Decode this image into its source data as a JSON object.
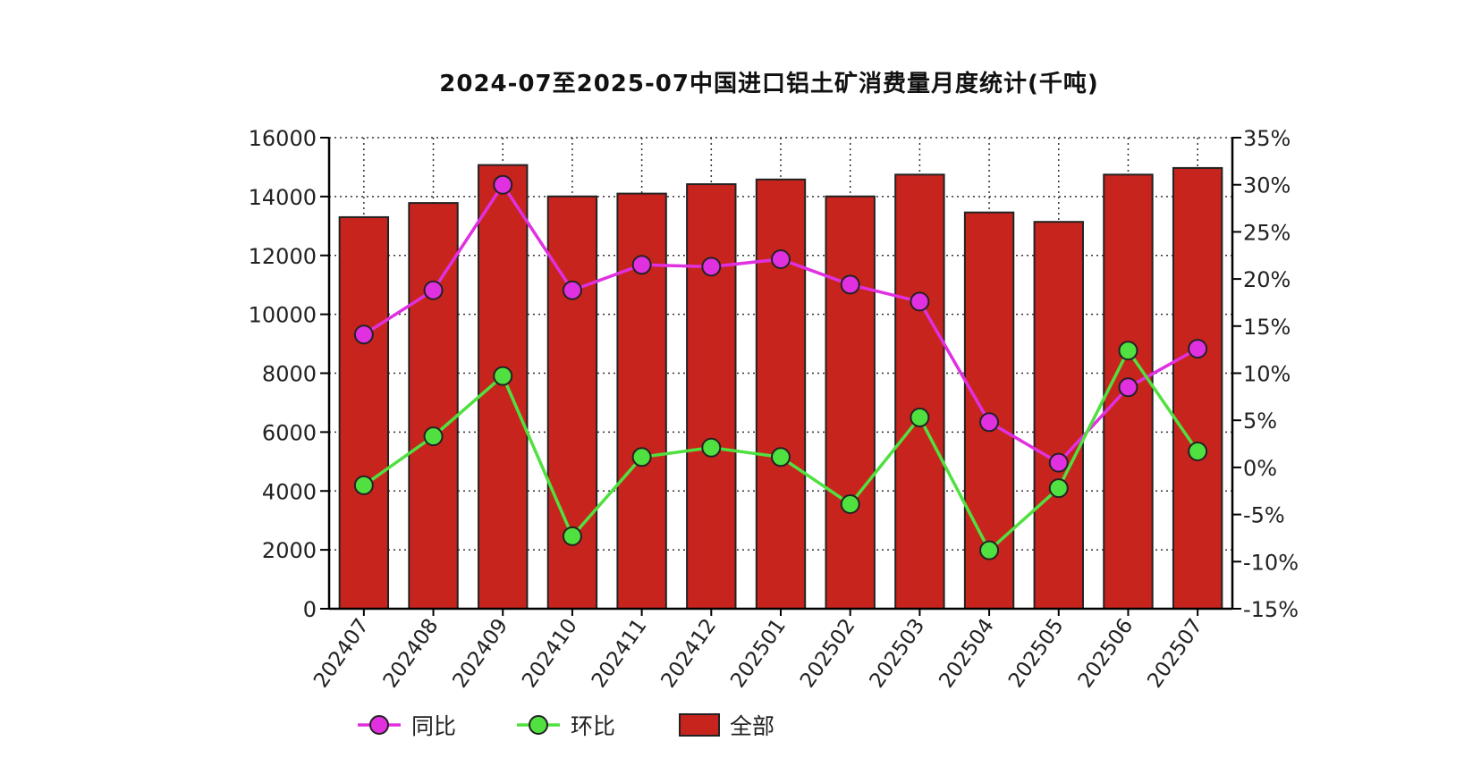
{
  "chart_data": {
    "type": "bar",
    "title": "2024-07至2025-07中国进口铝土矿消费量月度统计(千吨)",
    "categories": [
      "202407",
      "202408",
      "202409",
      "202410",
      "202411",
      "202412",
      "202501",
      "202502",
      "202503",
      "202504",
      "202505",
      "202506",
      "202507"
    ],
    "series": [
      {
        "name": "全部",
        "type": "bar",
        "axis": "left",
        "color": "#c8241e",
        "values": [
          13300,
          13780,
          15070,
          14005,
          14100,
          14420,
          14580,
          14005,
          14745,
          13460,
          13140,
          14745,
          14970
        ]
      },
      {
        "name": "同比",
        "type": "line",
        "axis": "right",
        "color": "#e030e0",
        "values": [
          14.1,
          18.8,
          30.0,
          18.8,
          21.5,
          21.3,
          22.1,
          19.4,
          17.6,
          4.8,
          0.5,
          8.5,
          12.6
        ]
      },
      {
        "name": "环比",
        "type": "line",
        "axis": "right",
        "color": "#50e040",
        "values": [
          -1.9,
          3.3,
          9.7,
          -7.3,
          1.1,
          2.1,
          1.1,
          -3.9,
          5.3,
          -8.8,
          -2.2,
          12.4,
          1.7
        ]
      }
    ],
    "ylim": [
      0,
      16000
    ],
    "yticks": [
      "0",
      "2000",
      "4000",
      "6000",
      "8000",
      "10000",
      "12000",
      "14000",
      "16000"
    ],
    "y2lim": [
      -15,
      35
    ],
    "y2ticks": [
      "-15%",
      "-10%",
      "-5%",
      "0%",
      "5%",
      "10%",
      "15%",
      "20%",
      "25%",
      "30%",
      "35%"
    ],
    "grid": true,
    "legend": {
      "placement": "bottom-left",
      "entries": [
        "同比",
        "环比",
        "全部"
      ]
    }
  }
}
